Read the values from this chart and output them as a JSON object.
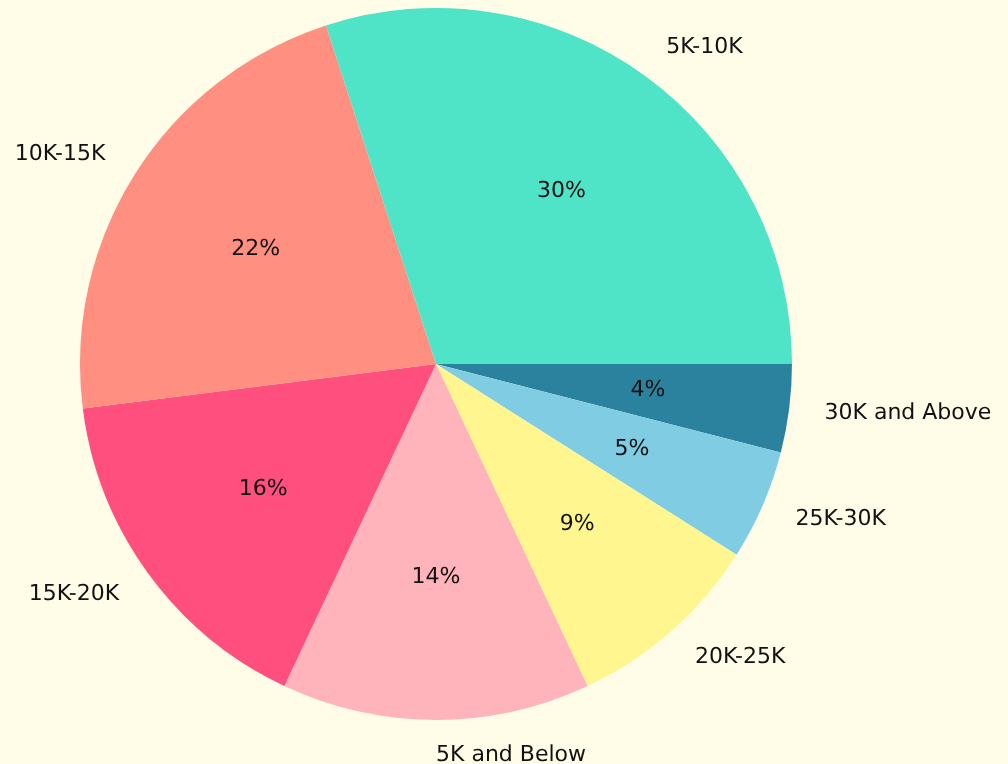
{
  "chart_data": {
    "type": "pie",
    "categories": [
      "30K and Above",
      "25K-30K",
      "20K-25K",
      "5K and Below",
      "15K-20K",
      "10K-15K",
      "5K-10K"
    ],
    "values": [
      4,
      5,
      9,
      14,
      16,
      22,
      30
    ],
    "value_labels": [
      "4%",
      "5%",
      "9%",
      "14%",
      "16%",
      "22%",
      "30%"
    ],
    "colors": [
      "#2a829f",
      "#80cde3",
      "#fff68f",
      "#ffb3ba",
      "#ff4f7f",
      "#ff8f80",
      "#4fe3c8"
    ]
  }
}
